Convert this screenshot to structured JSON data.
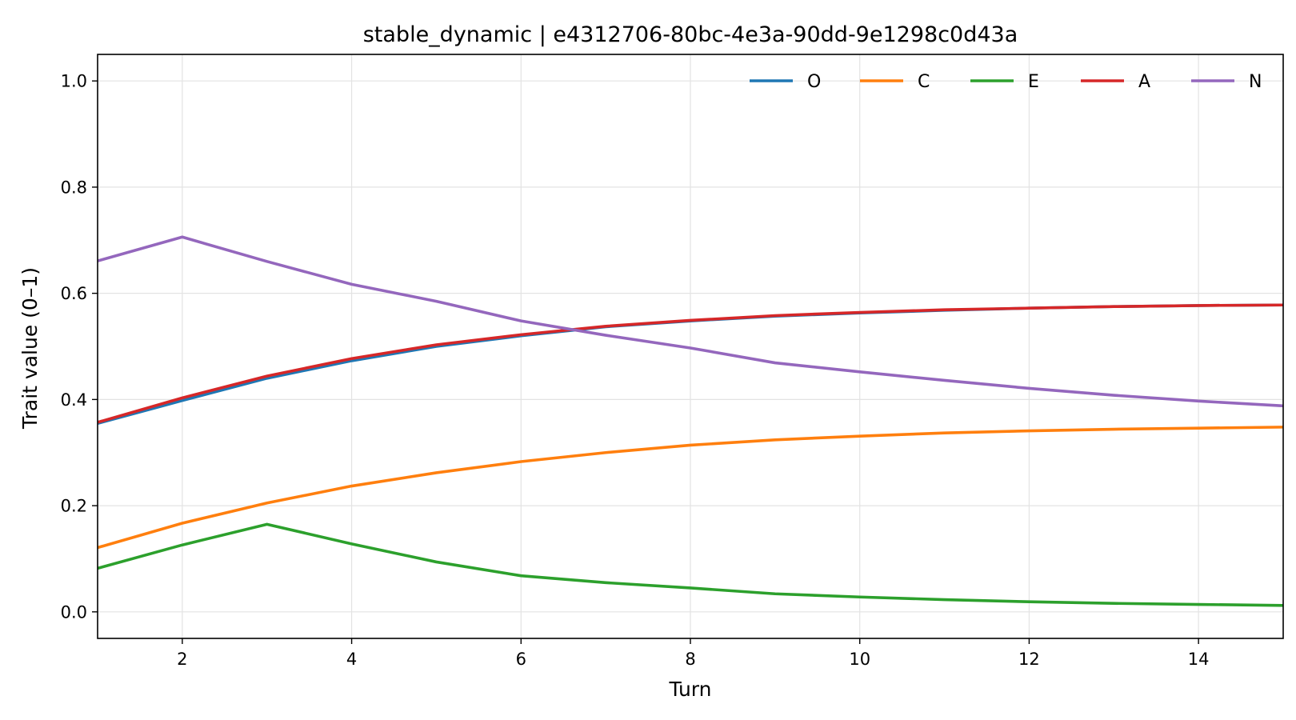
{
  "chart_data": {
    "type": "line",
    "title": "stable_dynamic | e4312706-80bc-4e3a-90dd-9e1298c0d43a",
    "xlabel": "Turn",
    "ylabel": "Trait value (0–1)",
    "xlim": [
      1,
      15
    ],
    "ylim": [
      -0.05,
      1.05
    ],
    "x_ticks": [
      2,
      4,
      6,
      8,
      10,
      12,
      14
    ],
    "y_ticks": [
      0.0,
      0.2,
      0.4,
      0.6,
      0.8,
      1.0
    ],
    "grid": true,
    "legend_position": "top-right",
    "x": [
      1,
      2,
      3,
      4,
      5,
      6,
      7,
      8,
      9,
      10,
      11,
      12,
      13,
      14,
      15
    ],
    "series": [
      {
        "name": "O",
        "color": "#1f77b4",
        "values": [
          0.355,
          0.398,
          0.44,
          0.473,
          0.5,
          0.52,
          0.537,
          0.548,
          0.557,
          0.563,
          0.568,
          0.572,
          0.575,
          0.577,
          0.578
        ]
      },
      {
        "name": "C",
        "color": "#ff7f0e",
        "values": [
          0.121,
          0.167,
          0.205,
          0.237,
          0.262,
          0.283,
          0.3,
          0.314,
          0.324,
          0.331,
          0.337,
          0.341,
          0.344,
          0.346,
          0.348
        ]
      },
      {
        "name": "E",
        "color": "#2ca02c",
        "values": [
          0.082,
          0.126,
          0.165,
          0.128,
          0.094,
          0.068,
          0.055,
          0.045,
          0.034,
          0.028,
          0.023,
          0.019,
          0.016,
          0.014,
          0.012
        ]
      },
      {
        "name": "A",
        "color": "#d62728",
        "values": [
          0.357,
          0.403,
          0.444,
          0.477,
          0.503,
          0.522,
          0.538,
          0.549,
          0.558,
          0.564,
          0.569,
          0.572,
          0.575,
          0.577,
          0.578
        ]
      },
      {
        "name": "N",
        "color": "#9467bd",
        "values": [
          0.661,
          0.706,
          0.66,
          0.617,
          0.585,
          0.548,
          0.521,
          0.497,
          0.469,
          0.452,
          0.436,
          0.421,
          0.408,
          0.397,
          0.388
        ]
      }
    ]
  }
}
